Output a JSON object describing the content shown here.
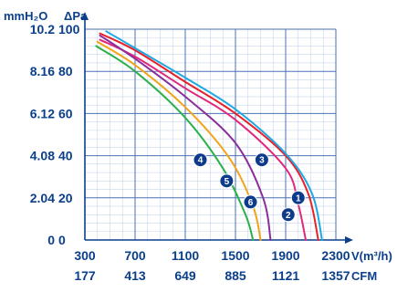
{
  "chart_data": {
    "type": "line",
    "title": "",
    "y_units": {
      "left": "mmH₂O",
      "right": "ΔPa"
    },
    "x_units": {
      "primary": "V(m³/h)",
      "secondary": "CFM"
    },
    "x_ticks_primary": [
      "300",
      "700",
      "1100",
      "1500",
      "1900",
      "2300"
    ],
    "x_ticks_secondary": [
      "177",
      "413",
      "649",
      "885",
      "1121",
      "1357"
    ],
    "y_ticks_mmH2O": [
      "0",
      "2.04",
      "4.08",
      "6.12",
      "8.16",
      "10.2"
    ],
    "y_ticks_Pa": [
      "0",
      "20",
      "40",
      "60",
      "80",
      "100"
    ],
    "xlim": [
      300,
      2300
    ],
    "ylim": [
      0,
      100
    ],
    "grid": true,
    "series": [
      {
        "badge": "1",
        "color": "#e8202a",
        "x": [
          420,
          700,
          1100,
          1500,
          1900,
          2080,
          2160
        ],
        "y": [
          98,
          90,
          75,
          60,
          40,
          22,
          0
        ]
      },
      {
        "badge": "2",
        "color": "#21a8e0",
        "x": [
          470,
          700,
          1100,
          1500,
          1900,
          2110,
          2190
        ],
        "y": [
          99,
          91,
          77,
          62,
          41,
          22,
          0
        ]
      },
      {
        "badge": "3",
        "color": "#e0287c",
        "x": [
          420,
          700,
          1100,
          1500,
          1900,
          2000,
          2060
        ],
        "y": [
          95,
          87,
          72,
          57,
          34,
          17,
          0
        ]
      },
      {
        "badge": "4",
        "color": "#2bb04a",
        "x": [
          390,
          700,
          1100,
          1400,
          1580,
          1640
        ],
        "y": [
          92,
          80,
          58,
          34,
          12,
          0
        ]
      },
      {
        "badge": "5",
        "color": "#f2a419",
        "x": [
          400,
          700,
          1100,
          1450,
          1640,
          1700
        ],
        "y": [
          94,
          83,
          63,
          39,
          16,
          0
        ]
      },
      {
        "badge": "6",
        "color": "#8a2e9a",
        "x": [
          420,
          700,
          1100,
          1500,
          1720,
          1780
        ],
        "y": [
          97,
          86,
          68,
          46,
          20,
          0
        ]
      }
    ],
    "badges": [
      {
        "label": "1",
        "x": 2000,
        "y": 20
      },
      {
        "label": "2",
        "x": 1920,
        "y": 12
      },
      {
        "label": "3",
        "x": 1710,
        "y": 38
      },
      {
        "label": "4",
        "x": 1220,
        "y": 38
      },
      {
        "label": "5",
        "x": 1430,
        "y": 28
      },
      {
        "label": "6",
        "x": 1620,
        "y": 18
      }
    ]
  }
}
